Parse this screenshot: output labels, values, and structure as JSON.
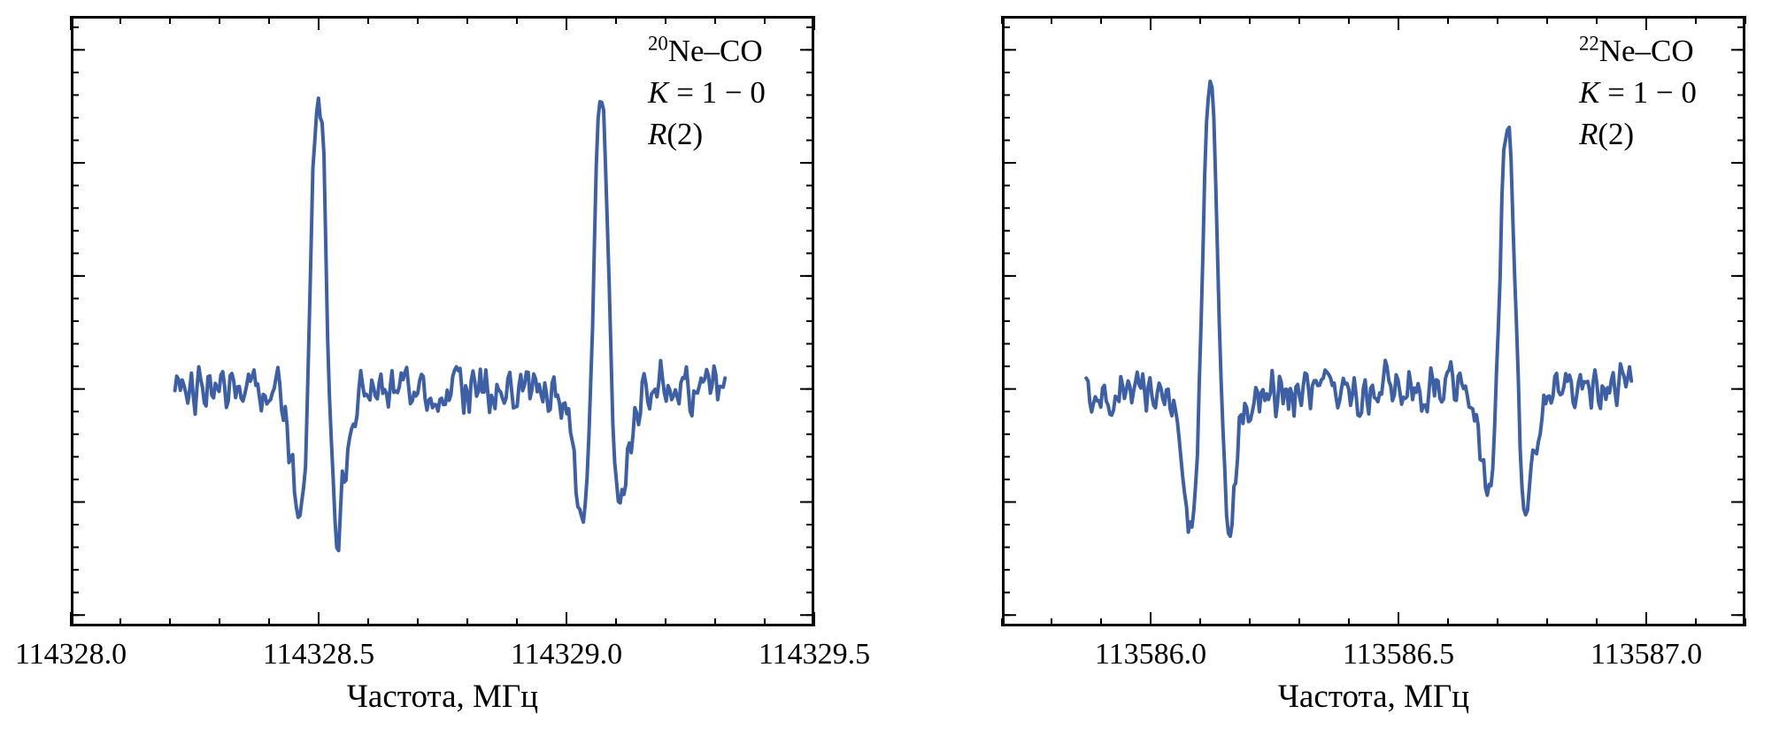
{
  "figure": {
    "background": "#ffffff",
    "line_color": "#3d5fa6",
    "frame_color": "#000000",
    "tick_color": "#000000",
    "text_color": "#000000"
  },
  "chart_data": [
    {
      "type": "line",
      "series_name": "20Ne-CO K=1-0 R(2) spectrum",
      "annotation": {
        "isotope": "20",
        "molecule": "Ne–CO",
        "k_symbol": "K",
        "k_rest": " = 1 − 0",
        "r_symbol": "R",
        "r_rest": "(2)"
      },
      "xlabel": "Частота, МГц",
      "ylabel": "",
      "xlim": [
        114328.0,
        114329.5
      ],
      "ylim": [
        -1.05,
        1.65
      ],
      "x_major_ticks": [
        114328.0,
        114328.5,
        114329.0,
        114329.5
      ],
      "x_tick_labels": [
        "114328.0",
        "114328.5",
        "114329.0",
        "114329.5"
      ],
      "x_minor_step": 0.1,
      "y_major_step": 0.5,
      "y_minor_step": 0.1,
      "grid": false,
      "legend": false,
      "signal": {
        "x_start": 114328.21,
        "x_end": 114329.32,
        "n_points": 300,
        "baseline": 0.0,
        "noise_amplitude": 0.13,
        "noise_seed": 12,
        "peaks": [
          {
            "center": 114328.5,
            "amplitude": 1.35,
            "width": 0.022
          },
          {
            "center": 114329.07,
            "amplitude": 1.27,
            "width": 0.022
          }
        ]
      }
    },
    {
      "type": "line",
      "series_name": "22Ne-CO K=1-0 R(2) spectrum",
      "annotation": {
        "isotope": "22",
        "molecule": "Ne–CO",
        "k_symbol": "K",
        "k_rest": " = 1 − 0",
        "r_symbol": "R",
        "r_rest": "(2)"
      },
      "xlabel": "Частота, МГц",
      "ylabel": "",
      "xlim": [
        113585.7,
        113587.2
      ],
      "ylim": [
        -1.05,
        1.65
      ],
      "x_major_ticks": [
        113586.0,
        113586.5,
        113587.0
      ],
      "x_tick_labels": [
        "113586.0",
        "113586.5",
        "113587.0"
      ],
      "x_minor_step": 0.1,
      "y_major_step": 0.5,
      "y_minor_step": 0.1,
      "grid": false,
      "legend": false,
      "signal": {
        "x_start": 113585.87,
        "x_end": 113586.97,
        "n_points": 300,
        "baseline": 0.0,
        "noise_amplitude": 0.13,
        "noise_seed": 47,
        "peaks": [
          {
            "center": 113586.12,
            "amplitude": 1.38,
            "width": 0.022
          },
          {
            "center": 113586.72,
            "amplitude": 1.22,
            "width": 0.022
          }
        ]
      }
    }
  ]
}
